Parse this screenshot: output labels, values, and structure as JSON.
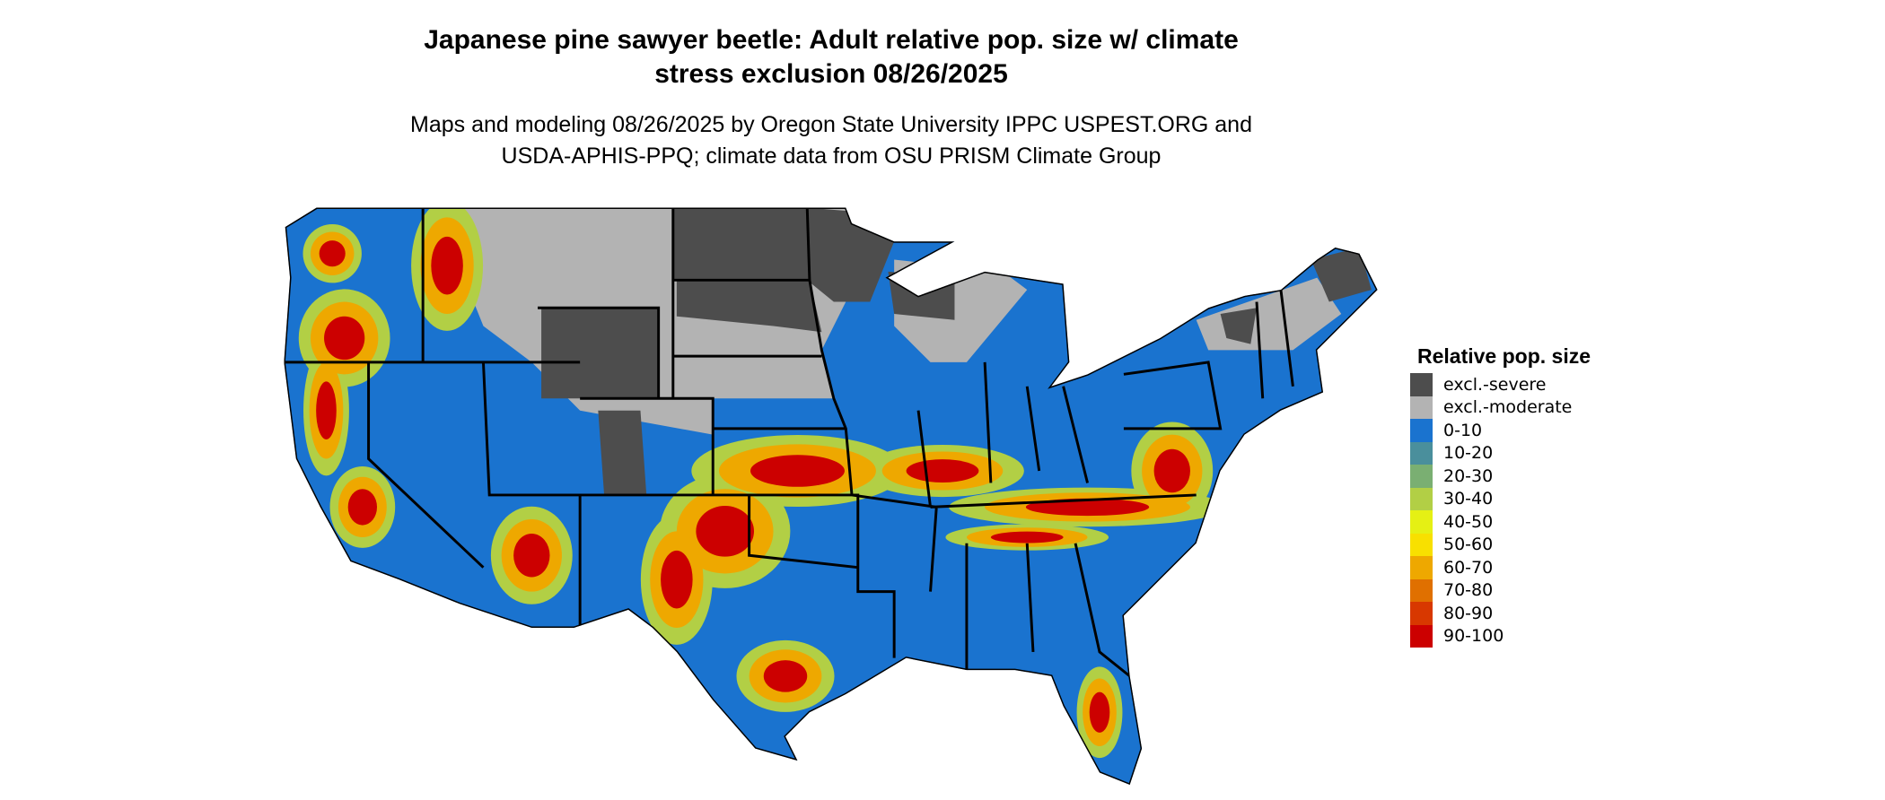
{
  "title": {
    "line1": "Japanese pine sawyer beetle: Adult relative pop. size w/ climate",
    "line2": "stress exclusion 08/26/2025"
  },
  "subtitle": {
    "line1": "Maps and modeling 08/26/2025 by Oregon State University IPPC USPEST.ORG and",
    "line2": "USDA-APHIS-PPQ; climate data from OSU PRISM Climate Group"
  },
  "map": {
    "region": "Contiguous United States",
    "base_category": "0-10",
    "excluded_regions": "northern plains and upper midwest (excl.-severe / excl.-moderate)",
    "high_regions": "central plains, Ohio/Tennessee valleys, mid-Atlantic, Texas gulf coast, Florida, Pacific northwest mountains"
  },
  "legend": {
    "title": "Relative pop. size",
    "items": [
      {
        "label": "excl.-severe",
        "color": "#4d4d4d"
      },
      {
        "label": "excl.-moderate",
        "color": "#b3b3b3"
      },
      {
        "label": "0-10",
        "color": "#1a73cf"
      },
      {
        "label": "10-20",
        "color": "#4a8f9c"
      },
      {
        "label": "20-30",
        "color": "#7aaf72"
      },
      {
        "label": "30-40",
        "color": "#b2cf45"
      },
      {
        "label": "40-50",
        "color": "#e5f014"
      },
      {
        "label": "50-60",
        "color": "#f8e000"
      },
      {
        "label": "60-70",
        "color": "#eea800"
      },
      {
        "label": "70-80",
        "color": "#e07000"
      },
      {
        "label": "80-90",
        "color": "#d83800"
      },
      {
        "label": "90-100",
        "color": "#cc0000"
      }
    ]
  }
}
